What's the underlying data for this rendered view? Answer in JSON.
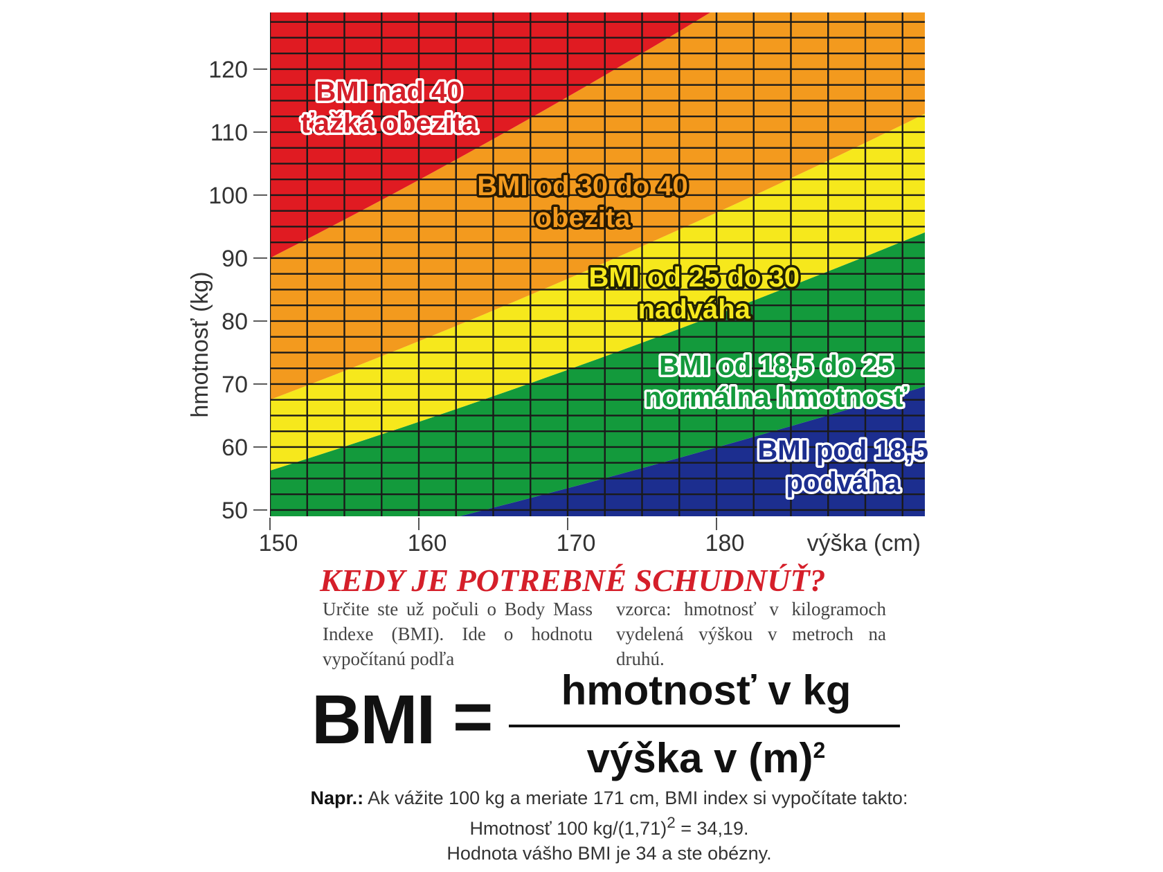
{
  "chart_data": {
    "type": "area",
    "xlabel": "výška (cm)",
    "ylabel": "hmotnosť (kg)",
    "x_ticks": [
      150,
      160,
      170,
      180
    ],
    "y_ticks": [
      50,
      60,
      70,
      80,
      90,
      100,
      110,
      120
    ],
    "xlim": [
      150,
      194
    ],
    "ylim": [
      49,
      129
    ],
    "grid": true,
    "series": [
      {
        "lines": [
          "BMI pod 18,5",
          "podváha"
        ],
        "bmi_min": 0,
        "bmi_max": 18.5,
        "color": "#1c2e8f",
        "label_color": "#1c2e8f",
        "label_at": [
          188.5,
          58
        ]
      },
      {
        "lines": [
          "BMI od 18,5 do 25",
          "normálna hmotnosť"
        ],
        "bmi_min": 18.5,
        "bmi_max": 25,
        "color": "#139a3c",
        "label_color": "#139a3c",
        "label_at": [
          184,
          71.5
        ]
      },
      {
        "lines": [
          "BMI od 25 do 30",
          "nadváha"
        ],
        "bmi_min": 25,
        "bmi_max": 30,
        "color": "#f6e81c",
        "label_color": "#3a3a00",
        "label_at": [
          178.5,
          85.5
        ]
      },
      {
        "lines": [
          "BMI od 30 do 40",
          "obezita"
        ],
        "bmi_min": 30,
        "bmi_max": 40,
        "color": "#f39a1e",
        "label_color": "#e8901a",
        "label_at": [
          171,
          100
        ]
      },
      {
        "lines": [
          "BMI nad 40",
          "ťažká obezita"
        ],
        "bmi_min": 40,
        "bmi_max": 200,
        "color": "#e01b22",
        "label_color": "#d51f2a",
        "label_at": [
          158,
          115
        ]
      }
    ]
  },
  "article": {
    "headline": "KEDY JE POTREBNÉ SCHUDNÚŤ?",
    "intro_left": "Určite ste už počuli o Body Mass Indexe (BMI). Ide o hodnotu vypočítanú podľa",
    "intro_right": "vzorca: hmotnosť v kilogramoch vydelená výškou v metroch na druhú.",
    "formula": {
      "lhs": "BMI",
      "equals": "=",
      "numerator": "hmotnosť v kg",
      "denominator": "výška v (m)",
      "exponent": "2"
    },
    "example": {
      "prefix": "Napr.:",
      "line1": " Ak vážite 100 kg a meriate 171 cm, BMI index si vypočítate takto: Hmotnosť 100 kg/(1,71)",
      "exponent": "2",
      "line1_end": " = 34,19.",
      "line2": "Hodnota vášho BMI je 34 a ste obézny."
    }
  }
}
